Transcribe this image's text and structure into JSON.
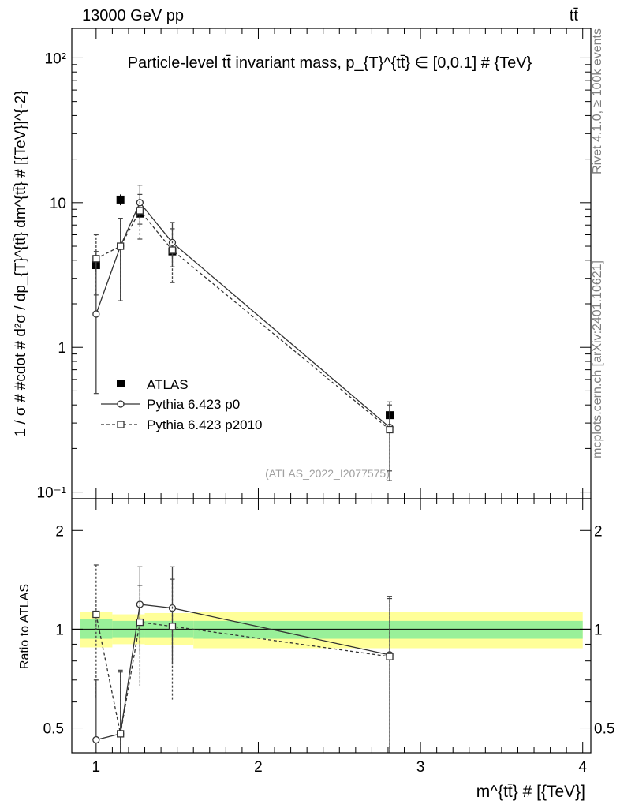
{
  "header": {
    "energy_label": "13000 GeV pp",
    "process_label": "tt̄"
  },
  "side_labels": {
    "rivet": "Rivet 4.1.0, ≥ 100k events",
    "mcplots": "mcplots.cern.ch [arXiv:2401.10621]"
  },
  "chart_data": [
    {
      "type": "scatter",
      "scale": "log",
      "title": "Particle-level tt̄ invariant mass, p_{T}^{tt̄} ∈ [0,0.1] # {TeV}",
      "ylabel": "1 / σ # #cdot # d²σ / dp_{T}^{tt̄} dm^{tt̄} # [{TeV}]^{-2}",
      "xlim": [
        0.85,
        4.05
      ],
      "ylim": [
        0.09,
        160
      ],
      "y_tick_labels": {
        "0.1": "10⁻¹",
        "1": "1",
        "10": "10",
        "100": "10²"
      },
      "watermark": "(ATLAS_2022_I2077575)",
      "legend_position": "center-left",
      "series": [
        {
          "name": "ATLAS",
          "style": "data",
          "x": [
            1.0,
            1.15,
            1.27,
            1.47,
            2.81
          ],
          "y": [
            3.7,
            10.5,
            8.4,
            4.6,
            0.34
          ],
          "yerr": [
            0.4,
            0.9,
            0.7,
            0.4,
            0.05
          ]
        },
        {
          "name": "Pythia 6.423 p0",
          "style": "solid-circle",
          "x": [
            1.0,
            1.15,
            1.27,
            1.47,
            2.81
          ],
          "y": [
            1.7,
            5.0,
            10.0,
            5.3,
            0.28
          ],
          "ylo": [
            0.48,
            2.1,
            7.1,
            3.6,
            0.12
          ],
          "yhi": [
            4.6,
            7.8,
            13.2,
            7.3,
            0.42
          ]
        },
        {
          "name": "Pythia 6.423 p2010",
          "style": "dashed-square",
          "x": [
            1.0,
            1.15,
            1.27,
            1.47,
            2.81
          ],
          "y": [
            4.1,
            5.0,
            8.8,
            4.7,
            0.27
          ],
          "ylo": [
            2.3,
            2.1,
            5.6,
            2.8,
            0.14
          ],
          "yhi": [
            6.0,
            7.8,
            11.4,
            6.6,
            0.4
          ]
        }
      ]
    },
    {
      "type": "scatter",
      "scale": "log",
      "title": "",
      "xlabel": "m^{tt̄} # [{TeV}]",
      "ylabel": "Ratio to ATLAS",
      "xlim": [
        0.85,
        4.05
      ],
      "ylim": [
        0.42,
        2.5
      ],
      "x_ticks": [
        1,
        2,
        3,
        4
      ],
      "y_ticks": [
        0.5,
        1,
        2
      ],
      "band": {
        "edges": [
          0.9,
          1.1,
          1.3,
          1.6,
          4.0
        ],
        "green_lo": [
          0.935,
          0.945,
          0.945,
          0.935
        ],
        "green_hi": [
          1.075,
          1.06,
          1.06,
          1.06
        ],
        "yellow_lo": [
          0.88,
          0.9,
          0.895,
          0.875
        ],
        "yellow_hi": [
          1.13,
          1.11,
          1.12,
          1.13
        ]
      },
      "series": [
        {
          "name": "Pythia 6.423 p0",
          "style": "solid-circle",
          "x": [
            1.0,
            1.15,
            1.27,
            1.47,
            2.81
          ],
          "y": [
            0.46,
            0.48,
            1.19,
            1.16,
            0.835
          ],
          "ylo": [
            0.42,
            0.42,
            0.85,
            0.78,
            0.42
          ],
          "yhi": [
            0.7,
            0.74,
            1.55,
            1.55,
            1.24
          ]
        },
        {
          "name": "Pythia 6.423 p2010",
          "style": "dashed-square",
          "x": [
            1.0,
            1.15,
            1.27,
            1.47,
            2.81
          ],
          "y": [
            1.11,
            0.48,
            1.05,
            1.02,
            0.825
          ],
          "ylo": [
            0.62,
            0.42,
            0.67,
            0.61,
            0.42
          ],
          "yhi": [
            1.57,
            0.75,
            1.36,
            1.42,
            1.26
          ]
        }
      ]
    }
  ]
}
